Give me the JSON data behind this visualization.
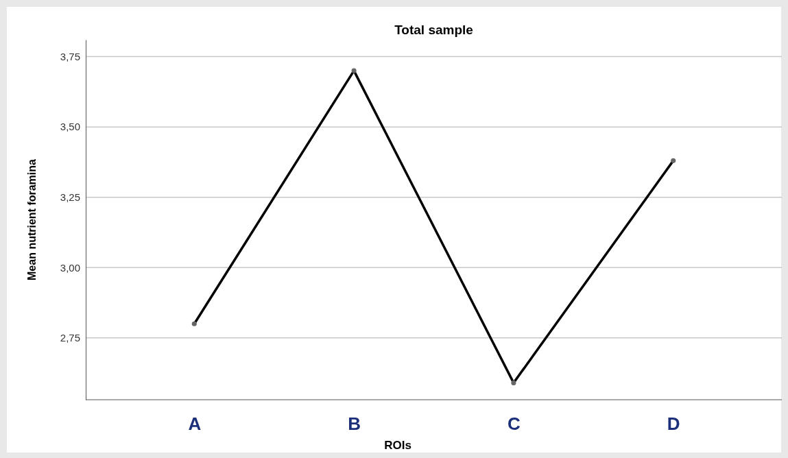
{
  "chart_data": {
    "type": "line",
    "title": "Total sample",
    "xlabel": "ROIs",
    "ylabel": "Mean nutrient foramina",
    "categories": [
      "A",
      "B",
      "C",
      "D"
    ],
    "series": [
      {
        "color": "#000000",
        "values": [
          2.8,
          3.7,
          2.59,
          3.38
        ]
      }
    ],
    "ylim": [
      2.53,
      3.81
    ],
    "yticks": [
      {
        "value": 2.75,
        "label": "2,75"
      },
      {
        "value": 3.0,
        "label": "3,00"
      },
      {
        "value": 3.25,
        "label": "3,25"
      },
      {
        "value": 3.5,
        "label": "3,50"
      },
      {
        "value": 3.75,
        "label": "3,75"
      }
    ],
    "grid": "y",
    "marker": "circle",
    "line_style": "solid"
  }
}
